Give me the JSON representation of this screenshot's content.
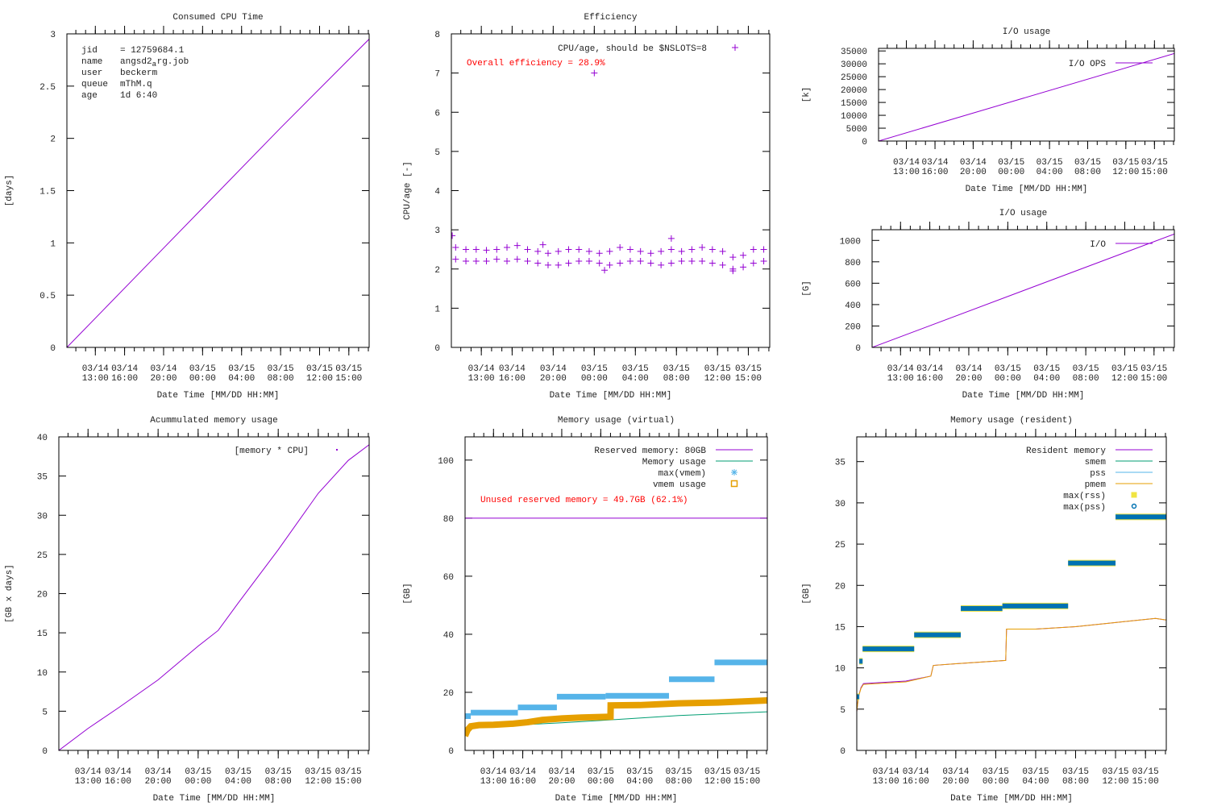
{
  "colors": {
    "purple": "#9400d3",
    "green": "#009e73",
    "lightblue": "#56b4e9",
    "orange": "#e69f00",
    "yellow": "#f0e442",
    "blue": "#0072b2",
    "red": "#ff0000",
    "axis": "#000000"
  },
  "xaxis": {
    "xlabel": "Date Time [MM/DD HH:MM]",
    "xlim": [
      "03/14 10:05",
      "03/15 17:05"
    ],
    "xticks": [
      {
        "at": "03/14 13:00",
        "label": [
          "03/14",
          "13:00"
        ]
      },
      {
        "at": "03/14 16:00",
        "label": [
          "03/14",
          "16:00"
        ]
      },
      {
        "at": "03/14 20:00",
        "label": [
          "03/14",
          "20:00"
        ]
      },
      {
        "at": "03/15 00:00",
        "label": [
          "03/15",
          "00:00"
        ]
      },
      {
        "at": "03/15 04:00",
        "label": [
          "03/15",
          "04:00"
        ]
      },
      {
        "at": "03/15 08:00",
        "label": [
          "03/15",
          "08:00"
        ]
      },
      {
        "at": "03/15 12:00",
        "label": [
          "03/15",
          "12:00"
        ]
      },
      {
        "at": "03/15 15:00",
        "label": [
          "03/15",
          "15:00"
        ]
      }
    ]
  },
  "chart_data": [
    {
      "id": "cpu",
      "type": "line",
      "title": "Consumed CPU Time",
      "ylabel": "[days]",
      "ylim": [
        0,
        3
      ],
      "yticks": [
        0,
        0.5,
        1,
        1.5,
        2,
        2.5,
        3
      ],
      "ytick_labels": [
        "0",
        "0.5",
        "1",
        "1.5",
        "2",
        "2.5",
        "3"
      ],
      "info": [
        {
          "key": "jid",
          "value": "= 12759684.1"
        },
        {
          "key": "name",
          "value": "angsd2",
          "sub": "a",
          "rest": "rg.job"
        },
        {
          "key": "user",
          "value": "beckerm"
        },
        {
          "key": "queue",
          "value": "mThM.q"
        },
        {
          "key": "age",
          "value": "1d 6:40"
        }
      ],
      "series": [
        {
          "style": "line",
          "color": "#9400d3",
          "points": [
            [
              "03/14 10:05",
              0
            ],
            [
              "03/14 20:00",
              0.95
            ],
            [
              "03/15 08:00",
              2.1
            ],
            [
              "03/15 17:05",
              2.95
            ]
          ]
        }
      ]
    },
    {
      "id": "eff",
      "type": "scatter",
      "title": "Efficiency",
      "ylabel": "CPU/age [-]",
      "ylim": [
        0,
        8
      ],
      "yticks": [
        0,
        1,
        2,
        3,
        4,
        5,
        6,
        7,
        8
      ],
      "ytick_labels": [
        "0",
        "1",
        "2",
        "3",
        "4",
        "5",
        "6",
        "7",
        "8"
      ],
      "annotation": "Overall efficiency = 28.9%",
      "series": [
        {
          "name": "CPU/age, should be $NSLOTS=8",
          "style": "plus",
          "color": "#9400d3",
          "x": [
            "03/14 10:30",
            "03/14 11:30",
            "03/14 12:30",
            "03/14 13:30",
            "03/14 14:30",
            "03/14 15:30",
            "03/14 16:30",
            "03/14 17:30",
            "03/14 18:30",
            "03/14 19:30",
            "03/14 20:30",
            "03/14 21:30",
            "03/14 22:30",
            "03/14 23:30",
            "03/15 00:30",
            "03/15 01:30",
            "03/15 02:30",
            "03/15 03:30",
            "03/15 04:30",
            "03/15 05:30",
            "03/15 06:30",
            "03/15 07:30",
            "03/15 08:30",
            "03/15 09:30",
            "03/15 10:30",
            "03/15 11:30",
            "03/15 12:30",
            "03/15 13:30",
            "03/15 14:30",
            "03/15 15:30",
            "03/15 16:30"
          ],
          "upper": [
            2.55,
            2.5,
            2.5,
            2.48,
            2.5,
            2.55,
            2.6,
            2.5,
            2.45,
            2.4,
            2.45,
            2.5,
            2.5,
            2.45,
            2.4,
            2.45,
            2.55,
            2.5,
            2.45,
            2.4,
            2.45,
            2.5,
            2.45,
            2.5,
            2.55,
            2.5,
            2.45,
            2.3,
            2.35,
            2.5,
            2.5
          ],
          "lower": [
            2.25,
            2.2,
            2.2,
            2.2,
            2.25,
            2.2,
            2.25,
            2.2,
            2.15,
            2.1,
            2.1,
            2.15,
            2.2,
            2.2,
            2.15,
            2.1,
            2.15,
            2.2,
            2.2,
            2.15,
            2.1,
            2.15,
            2.2,
            2.2,
            2.2,
            2.15,
            2.1,
            2.0,
            2.05,
            2.15,
            2.2
          ],
          "outliers": [
            [
              "03/14 10:10",
              2.85
            ],
            [
              "03/14 19:00",
              2.62
            ],
            [
              "03/15 00:00",
              7.0
            ],
            [
              "03/15 01:00",
              1.97
            ],
            [
              "03/15 07:30",
              2.78
            ],
            [
              "03/15 13:30",
              1.95
            ]
          ]
        }
      ]
    },
    {
      "id": "io_ops",
      "type": "line",
      "title": "I/O usage",
      "ylabel": "[k]",
      "ylim": [
        0,
        36000
      ],
      "yticks": [
        0,
        5000,
        10000,
        15000,
        20000,
        25000,
        30000,
        35000
      ],
      "ytick_labels": [
        "0",
        "5000",
        "10000",
        "15000",
        "20000",
        "25000",
        "30000",
        "35000"
      ],
      "series": [
        {
          "name": "I/O OPS",
          "style": "line",
          "color": "#9400d3",
          "points": [
            [
              "03/14 10:05",
              0
            ],
            [
              "03/15 17:05",
              34000
            ]
          ]
        }
      ]
    },
    {
      "id": "io_g",
      "type": "line",
      "title": "I/O usage",
      "ylabel": "[G]",
      "ylim": [
        0,
        1100
      ],
      "yticks": [
        0,
        200,
        400,
        600,
        800,
        1000
      ],
      "ytick_labels": [
        "0",
        "200",
        "400",
        "600",
        "800",
        "1000"
      ],
      "series": [
        {
          "name": "I/O",
          "style": "line",
          "color": "#9400d3",
          "points": [
            [
              "03/14 10:05",
              0
            ],
            [
              "03/15 17:05",
              1060
            ]
          ]
        }
      ]
    },
    {
      "id": "accum",
      "type": "line",
      "title": "Acummulated memory usage",
      "ylabel": "[GB x days]",
      "ylim": [
        0,
        40
      ],
      "yticks": [
        0,
        5,
        10,
        15,
        20,
        25,
        30,
        35,
        40
      ],
      "ytick_labels": [
        "0",
        "5",
        "10",
        "15",
        "20",
        "25",
        "30",
        "35",
        "40"
      ],
      "series": [
        {
          "name": "[memory * CPU]",
          "style": "line",
          "color": "#9400d3",
          "points": [
            [
              "03/14 10:05",
              0
            ],
            [
              "03/14 13:00",
              2.8
            ],
            [
              "03/14 16:00",
              5.4
            ],
            [
              "03/14 20:00",
              9.0
            ],
            [
              "03/15 00:00",
              13.3
            ],
            [
              "03/15 02:00",
              15.3
            ],
            [
              "03/15 04:00",
              18.8
            ],
            [
              "03/15 08:00",
              25.6
            ],
            [
              "03/15 12:00",
              32.8
            ],
            [
              "03/15 15:00",
              37.0
            ],
            [
              "03/15 17:05",
              39.0
            ]
          ]
        }
      ]
    },
    {
      "id": "vmem",
      "type": "line",
      "title": "Memory usage (virtual)",
      "ylabel": "[GB]",
      "ylim": [
        0,
        108
      ],
      "yticks": [
        0,
        20,
        40,
        60,
        80,
        100
      ],
      "ytick_labels": [
        "0",
        "20",
        "40",
        "60",
        "80",
        "100"
      ],
      "annotation": "Unused reserved memory = 49.7GB (62.1%)",
      "series": [
        {
          "name": "Reserved memory: 80GB",
          "style": "line",
          "color": "#9400d3",
          "points": [
            [
              "03/14 10:05",
              80
            ],
            [
              "03/15 17:05",
              80
            ]
          ]
        },
        {
          "name": "Memory usage",
          "style": "line",
          "color": "#009e73",
          "points": [
            [
              "03/14 10:05",
              5
            ],
            [
              "03/14 11:00",
              8
            ],
            [
              "03/14 20:00",
              9.5
            ],
            [
              "03/15 00:00",
              10.3
            ],
            [
              "03/15 08:00",
              12
            ],
            [
              "03/15 17:05",
              13.3
            ]
          ]
        },
        {
          "name": "max(vmem)",
          "style": "segments",
          "marker": "star",
          "color": "#56b4e9",
          "segments": [
            [
              "03/14 10:05",
              "03/14 10:40",
              11.8
            ],
            [
              "03/14 10:40",
              "03/14 15:30",
              13
            ],
            [
              "03/14 15:30",
              "03/14 19:30",
              14.8
            ],
            [
              "03/14 19:30",
              "03/15 00:30",
              18.5
            ],
            [
              "03/15 00:30",
              "03/15 07:00",
              18.8
            ],
            [
              "03/15 07:00",
              "03/15 11:40",
              24.5
            ],
            [
              "03/15 11:40",
              "03/15 17:05",
              30.3
            ]
          ]
        },
        {
          "name": "vmem usage",
          "style": "thick",
          "marker": "square",
          "color": "#e69f00",
          "points": [
            [
              "03/14 10:05",
              5
            ],
            [
              "03/14 10:20",
              7
            ],
            [
              "03/14 10:40",
              8.3
            ],
            [
              "03/14 11:30",
              8.7
            ],
            [
              "03/14 13:00",
              8.8
            ],
            [
              "03/14 15:00",
              9.2
            ],
            [
              "03/14 16:30",
              9.7
            ],
            [
              "03/14 18:00",
              10.5
            ],
            [
              "03/14 20:00",
              11
            ],
            [
              "03/14 22:00",
              11.3
            ],
            [
              "03/15 01:00",
              11.6
            ],
            [
              "03/15 01:01",
              15.5
            ],
            [
              "03/15 04:00",
              15.6
            ],
            [
              "03/15 08:00",
              16.2
            ],
            [
              "03/15 12:00",
              16.5
            ],
            [
              "03/15 17:05",
              17.2
            ]
          ]
        }
      ]
    },
    {
      "id": "rss",
      "type": "line",
      "title": "Memory usage (resident)",
      "ylabel": "[GB]",
      "ylim": [
        0,
        38
      ],
      "yticks": [
        0,
        5,
        10,
        15,
        20,
        25,
        30,
        35
      ],
      "ytick_labels": [
        "0",
        "5",
        "10",
        "15",
        "20",
        "25",
        "30",
        "35"
      ],
      "series": [
        {
          "name": "Resident memory",
          "style": "line",
          "color": "#9400d3",
          "points": [
            [
              "03/14 10:05",
              4.7
            ],
            [
              "03/14 10:15",
              6.5
            ],
            [
              "03/14 10:30",
              7.6
            ],
            [
              "03/14 10:45",
              8.1
            ],
            [
              "03/14 15:00",
              8.4
            ],
            [
              "03/14 17:30",
              9
            ],
            [
              "03/14 17:45",
              10.3
            ],
            [
              "03/14 20:00",
              10.5
            ],
            [
              "03/15 01:00",
              10.9
            ],
            [
              "03/15 01:05",
              14.7
            ],
            [
              "03/15 04:00",
              14.7
            ],
            [
              "03/15 08:00",
              15
            ],
            [
              "03/15 12:00",
              15.5
            ],
            [
              "03/15 16:00",
              16
            ],
            [
              "03/15 17:05",
              15.8
            ]
          ]
        },
        {
          "name": "smem",
          "style": "legend-only",
          "color": "#009e73"
        },
        {
          "name": "pss",
          "style": "legend-only",
          "color": "#56b4e9"
        },
        {
          "name": "pmem",
          "style": "line",
          "color": "#e69f00",
          "points": [
            [
              "03/14 10:05",
              4.7
            ],
            [
              "03/14 10:15",
              6.5
            ],
            [
              "03/14 10:30",
              7.5
            ],
            [
              "03/14 10:45",
              8
            ],
            [
              "03/14 15:00",
              8.3
            ],
            [
              "03/14 17:30",
              9
            ],
            [
              "03/14 17:45",
              10.3
            ],
            [
              "03/14 20:00",
              10.5
            ],
            [
              "03/15 01:00",
              10.9
            ],
            [
              "03/15 01:05",
              14.7
            ],
            [
              "03/15 04:00",
              14.7
            ],
            [
              "03/15 08:00",
              15
            ],
            [
              "03/15 12:00",
              15.5
            ],
            [
              "03/15 16:00",
              16
            ],
            [
              "03/15 17:05",
              15.8
            ]
          ]
        },
        {
          "name": "max(rss)",
          "style": "segments",
          "marker": "square",
          "color": "#f0e442",
          "segments": [
            [
              "03/14 10:05",
              "03/14 10:20",
              6.5
            ],
            [
              "03/14 10:20",
              "03/14 10:40",
              10.8
            ],
            [
              "03/14 10:40",
              "03/14 15:50",
              12.3
            ],
            [
              "03/14 15:50",
              "03/14 20:30",
              14
            ],
            [
              "03/14 20:30",
              "03/15 00:40",
              17.2
            ],
            [
              "03/15 00:40",
              "03/15 07:15",
              17.5
            ],
            [
              "03/15 07:15",
              "03/15 12:00",
              22.7
            ],
            [
              "03/15 12:00",
              "03/15 17:05",
              28.3
            ]
          ]
        },
        {
          "name": "max(pss)",
          "style": "segments",
          "marker": "circle",
          "color": "#0072b2",
          "segments": [
            [
              "03/14 10:05",
              "03/14 10:20",
              6.5
            ],
            [
              "03/14 10:20",
              "03/14 10:40",
              10.8
            ],
            [
              "03/14 10:40",
              "03/14 15:50",
              12.3
            ],
            [
              "03/14 15:50",
              "03/14 20:30",
              14
            ],
            [
              "03/14 20:30",
              "03/15 00:40",
              17.2
            ],
            [
              "03/15 00:40",
              "03/15 07:15",
              17.5
            ],
            [
              "03/15 07:15",
              "03/15 12:00",
              22.7
            ],
            [
              "03/15 12:00",
              "03/15 17:05",
              28.3
            ]
          ]
        }
      ]
    }
  ]
}
